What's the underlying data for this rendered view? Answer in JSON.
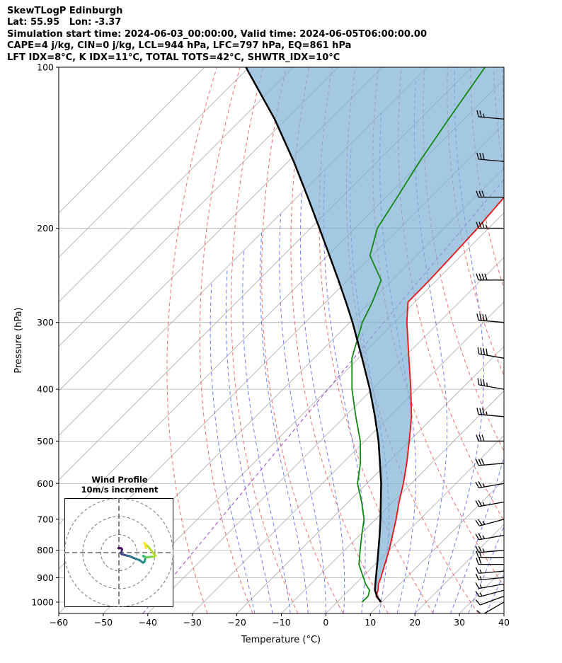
{
  "header": {
    "line1": "SkewTLogP Edinburgh",
    "line2": "Lat: 55.95   Lon: -3.37",
    "line3": "Simulation start time: 2024-06-03_00:00:00, Valid time: 2024-06-05T06:00:00.00",
    "line4": "CAPE=4 j/kg, CIN=0 j/kg, LCL=944 hPa, LFC=797 hPa, EQ=861 hPa",
    "line5": "LFT IDX=8°C, K IDX=11°C, TOTAL TOTS=42°C, SHWTR_IDX=10°C"
  },
  "hodograph": {
    "title_line1": "Wind Profile",
    "title_line2": "10m/s increment"
  },
  "colors": {
    "temperature": "#ee1111",
    "dewpoint": "#118811",
    "parcel": "#000000",
    "cape_fill": "#7eb0d6",
    "dry_adiabat": "#ee5555",
    "moist_adiabat": "#5566ee",
    "mixing_ratio": "#9944cc",
    "isotherm": "#aaaaaa"
  },
  "chart_data": {
    "type": "line",
    "title": "",
    "xlabel": "Temperature (°C)",
    "ylabel": "Pressure (hPa)",
    "xlim": [
      -60,
      40
    ],
    "ylim": [
      1050,
      100
    ],
    "y_scale": "log",
    "x_ticks": [
      "−60",
      "−50",
      "−40",
      "−30",
      "−20",
      "−10",
      "0",
      "10",
      "20",
      "30",
      "40"
    ],
    "x_tick_values": [
      -60,
      -50,
      -40,
      -30,
      -20,
      -10,
      0,
      10,
      20,
      30,
      40
    ],
    "y_ticks": [
      "1000",
      "900",
      "800",
      "700",
      "600",
      "500",
      "400",
      "300",
      "200",
      "100"
    ],
    "y_tick_values": [
      1000,
      900,
      800,
      700,
      600,
      500,
      400,
      300,
      200,
      100
    ],
    "grid": true,
    "series": [
      {
        "role": "temperature",
        "pressure": [
          1000,
          975,
          950,
          925,
          900,
          850,
          800,
          750,
          700,
          650,
          600,
          550,
          500,
          450,
          400,
          350,
          300,
          275,
          250,
          225,
          200,
          175,
          150,
          125,
          100
        ],
        "temp": [
          9.8,
          7.4,
          6.5,
          5.2,
          4.3,
          2.2,
          0.0,
          -2.6,
          -5.4,
          -8.6,
          -11.8,
          -15.6,
          -20.0,
          -25.0,
          -31.3,
          -38.7,
          -47.2,
          -51.5,
          -51.6,
          -52.0,
          -52.5,
          -53.5,
          -55.0,
          -57.5,
          -59.5
        ]
      },
      {
        "role": "dewpoint",
        "pressure": [
          1000,
          975,
          950,
          925,
          900,
          850,
          800,
          750,
          700,
          650,
          600,
          550,
          500,
          450,
          400,
          350,
          300,
          275,
          250,
          225,
          200,
          175,
          150,
          125,
          100
        ],
        "temp": [
          5.6,
          5.6,
          4.6,
          2.3,
          0.4,
          -3.6,
          -6.5,
          -9.5,
          -12.6,
          -17.0,
          -22.1,
          -26.0,
          -31.0,
          -37.5,
          -44.5,
          -51.5,
          -57.2,
          -59.5,
          -62.5,
          -70.5,
          -75.0,
          -77.5,
          -80.5,
          -83.5,
          -87.0
        ]
      },
      {
        "role": "parcel",
        "pressure": [
          1000,
          975,
          950,
          925,
          900,
          850,
          800,
          750,
          700,
          650,
          600,
          550,
          500,
          450,
          400,
          350,
          300,
          275,
          250,
          225,
          200,
          175,
          150,
          125,
          100
        ],
        "temp": [
          9.8,
          7.6,
          5.8,
          4.5,
          3.2,
          0.5,
          -2.4,
          -5.5,
          -8.9,
          -12.7,
          -16.8,
          -21.6,
          -26.9,
          -33.2,
          -40.5,
          -49.2,
          -59.4,
          -65.4,
          -72.1,
          -79.6,
          -88.0,
          -97.6,
          -108.8,
          -122.6,
          -140.7
        ]
      }
    ],
    "wind_barbs": {
      "pressure": [
        1000,
        975,
        950,
        925,
        900,
        875,
        850,
        825,
        800,
        750,
        700,
        650,
        600,
        550,
        500,
        450,
        400,
        350,
        300,
        250,
        200,
        175,
        150,
        125,
        100
      ],
      "speed_kt": [
        10,
        10,
        15,
        15,
        15,
        15,
        20,
        20,
        25,
        25,
        25,
        25,
        25,
        30,
        30,
        35,
        35,
        40,
        40,
        40,
        35,
        30,
        30,
        25,
        25
      ],
      "direction_deg": [
        240,
        250,
        255,
        260,
        265,
        265,
        270,
        270,
        265,
        260,
        255,
        260,
        260,
        265,
        270,
        275,
        280,
        280,
        275,
        270,
        270,
        270,
        275,
        275,
        280
      ]
    },
    "hodograph": {
      "type": "line",
      "increment_ms": 10,
      "u": [
        -0.3,
        0.8,
        1.4,
        1.7,
        1.6,
        1.3,
        1.2,
        1.7,
        2.8,
        4.3,
        6.0,
        7.7,
        9.5,
        11.5,
        13.4,
        14.2,
        14.5,
        14.9,
        14.0,
        13.4,
        13.8,
        14.8,
        16.3,
        17.6,
        19.2,
        20.3,
        16.3,
        14.8,
        14.2,
        14.7,
        14.9
      ],
      "v": [
        2.5,
        2.5,
        2.3,
        1.8,
        1.0,
        0.2,
        -0.5,
        -0.9,
        -1.2,
        -1.6,
        -2.0,
        -2.8,
        -3.5,
        -4.2,
        -5.6,
        -5.0,
        -3.8,
        -2.6,
        -2.1,
        -1.8,
        -2.2,
        -2.6,
        -2.5,
        -2.3,
        -2.3,
        -1.8,
        3.2,
        4.6,
        5.3,
        3.7,
        2.5
      ]
    }
  }
}
